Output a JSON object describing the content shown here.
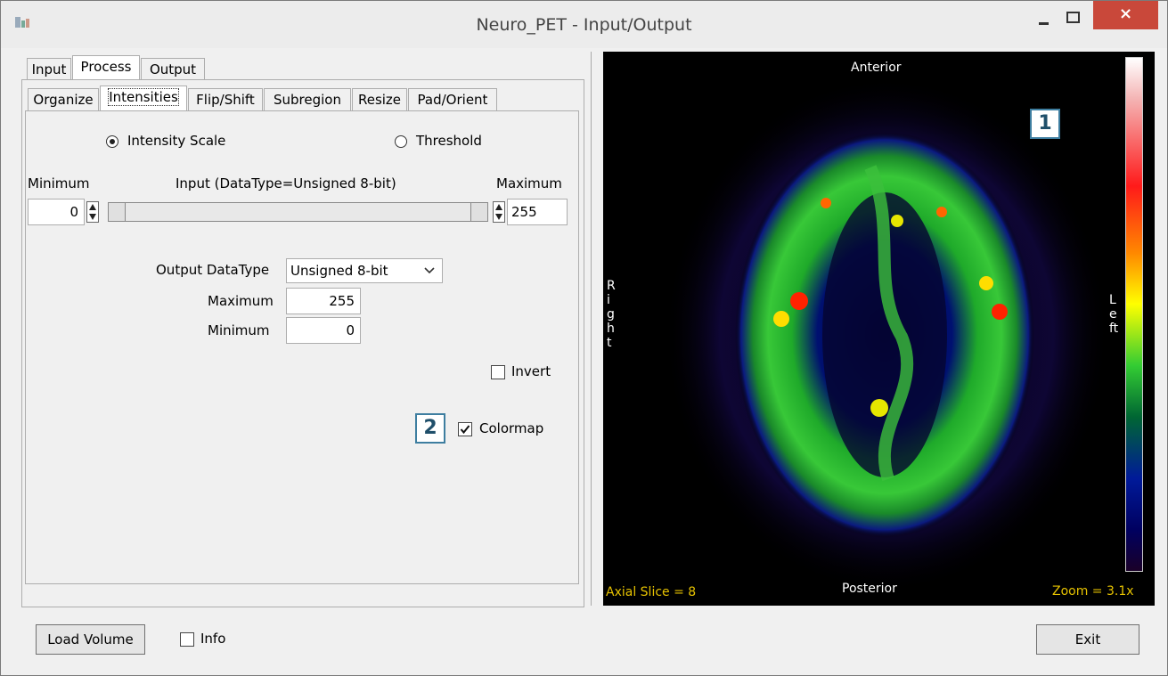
{
  "window": {
    "title": "Neuro_PET - Input/Output",
    "close_glyph": "×"
  },
  "main_tabs": [
    {
      "label": "Input"
    },
    {
      "label": "Process"
    },
    {
      "label": "Output"
    }
  ],
  "sub_tabs": [
    {
      "label": "Organize"
    },
    {
      "label": "Intensities"
    },
    {
      "label": "Flip/Shift"
    },
    {
      "label": "Subregion"
    },
    {
      "label": "Resize"
    },
    {
      "label": "Pad/Orient"
    }
  ],
  "intensities": {
    "radio_intensity_scale": "Intensity Scale",
    "radio_threshold": "Threshold",
    "minimum_label": "Minimum",
    "input_label": "Input (DataType=Unsigned 8-bit)",
    "maximum_label": "Maximum",
    "input_min_value": "0",
    "input_max_value": "255",
    "output_datatype_label": "Output DataType",
    "output_datatype_value": "Unsigned 8-bit",
    "output_max_label": "Maximum",
    "output_max_value": "255",
    "output_min_label": "Minimum",
    "output_min_value": "0",
    "invert_label": "Invert",
    "invert_checked": false,
    "colormap_label": "Colormap",
    "colormap_checked": true
  },
  "badges": {
    "badge1": "1",
    "badge2": "2"
  },
  "viewer": {
    "anterior": "Anterior",
    "posterior": "Posterior",
    "right": "Right",
    "left": "Left",
    "slice_text": "Axial Slice = 8",
    "zoom_text": "Zoom = 3.1x"
  },
  "bottom": {
    "load_volume": "Load Volume",
    "info_label": "Info",
    "exit": "Exit"
  },
  "colors": {
    "overlay_yellow": "#e6c200",
    "overlay_white": "#ffffff",
    "close_red": "#c9483a",
    "badge_blue": "#3e7ea0"
  }
}
